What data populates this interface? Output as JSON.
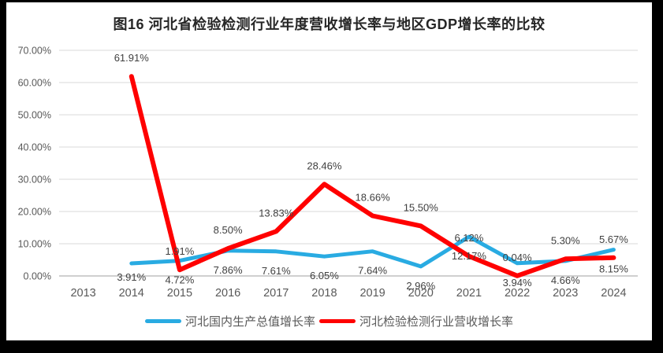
{
  "title": "图16 河北省检验检测行业年度营收增长率与地区GDP增长率的比较",
  "chart_data": {
    "type": "line",
    "categories": [
      "2013",
      "2014",
      "2015",
      "2016",
      "2017",
      "2018",
      "2019",
      "2020",
      "2021",
      "2022",
      "2023",
      "2024"
    ],
    "series": [
      {
        "name": "河北国内生产总值增长率",
        "color": "#29ABE2",
        "label_position": "below",
        "values": [
          null,
          3.91,
          4.72,
          7.86,
          7.61,
          6.05,
          7.64,
          2.96,
          12.17,
          3.94,
          4.66,
          8.15
        ]
      },
      {
        "name": "河北检验检测行业营收增长率",
        "color": "#FF0000",
        "label_position": "above",
        "values": [
          null,
          61.91,
          1.91,
          8.5,
          13.83,
          28.46,
          18.66,
          15.5,
          6.12,
          0.04,
          5.3,
          5.67
        ]
      }
    ],
    "y_axis": {
      "min": 0,
      "max": 70,
      "step": 10,
      "tick_format": "0.00%"
    },
    "value_format": "0.00%",
    "grid": true,
    "legend_position": "bottom"
  },
  "colors": {
    "frame_bg": "#000000",
    "chart_bg": "#FFFFFF",
    "gridline": "#D9D9D9",
    "axis_line": "#BFBFBF",
    "tick_text": "#595959",
    "data_label_text": "#404040",
    "title_text": "#262626"
  }
}
